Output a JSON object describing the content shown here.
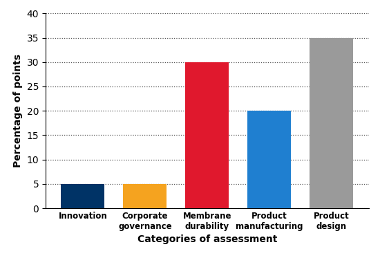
{
  "chart_data": {
    "type": "bar",
    "categories": [
      "Innovation",
      "Corporate governance",
      "Membrane durability",
      "Product manufacturing",
      "Product design"
    ],
    "values": [
      5,
      5,
      30,
      20,
      35
    ],
    "colors": [
      "#003366",
      "#f5a31f",
      "#e0182d",
      "#1f7fd0",
      "#9a9a9a"
    ],
    "x_label": "Categories of assessment",
    "y_label": "Percentage of points",
    "ylim": [
      0,
      40
    ],
    "yticks": [
      0,
      5,
      10,
      15,
      20,
      25,
      30,
      35,
      40
    ],
    "grid": true
  }
}
